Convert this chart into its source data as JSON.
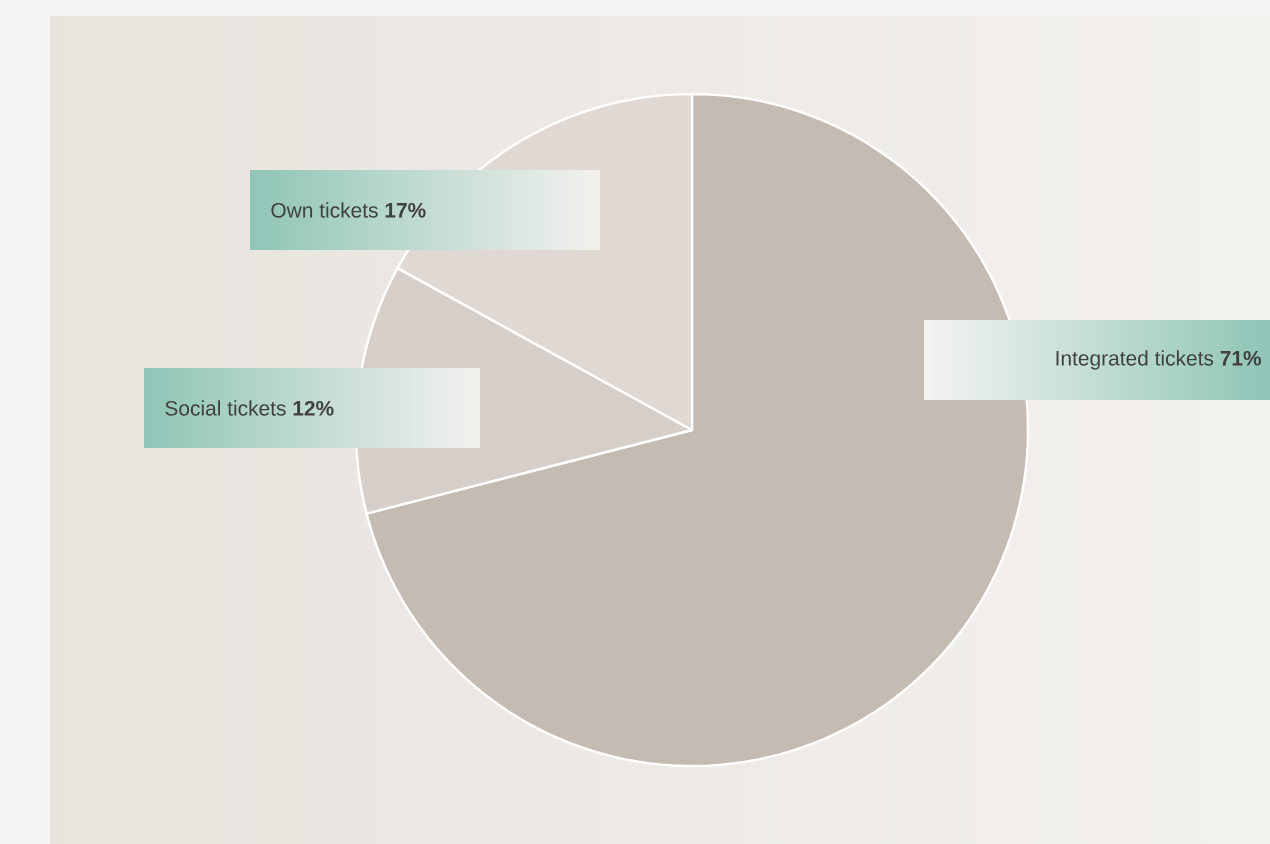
{
  "chart_data": {
    "type": "pie",
    "categories": [
      "Integrated tickets",
      "Social tickets",
      "Own tickets"
    ],
    "values": [
      71,
      12,
      17
    ],
    "value_labels": [
      "71%",
      "12%",
      "17%"
    ],
    "colors": [
      "#c4bcb3",
      "#d6cfc9",
      "#e0d9d3"
    ]
  }
}
